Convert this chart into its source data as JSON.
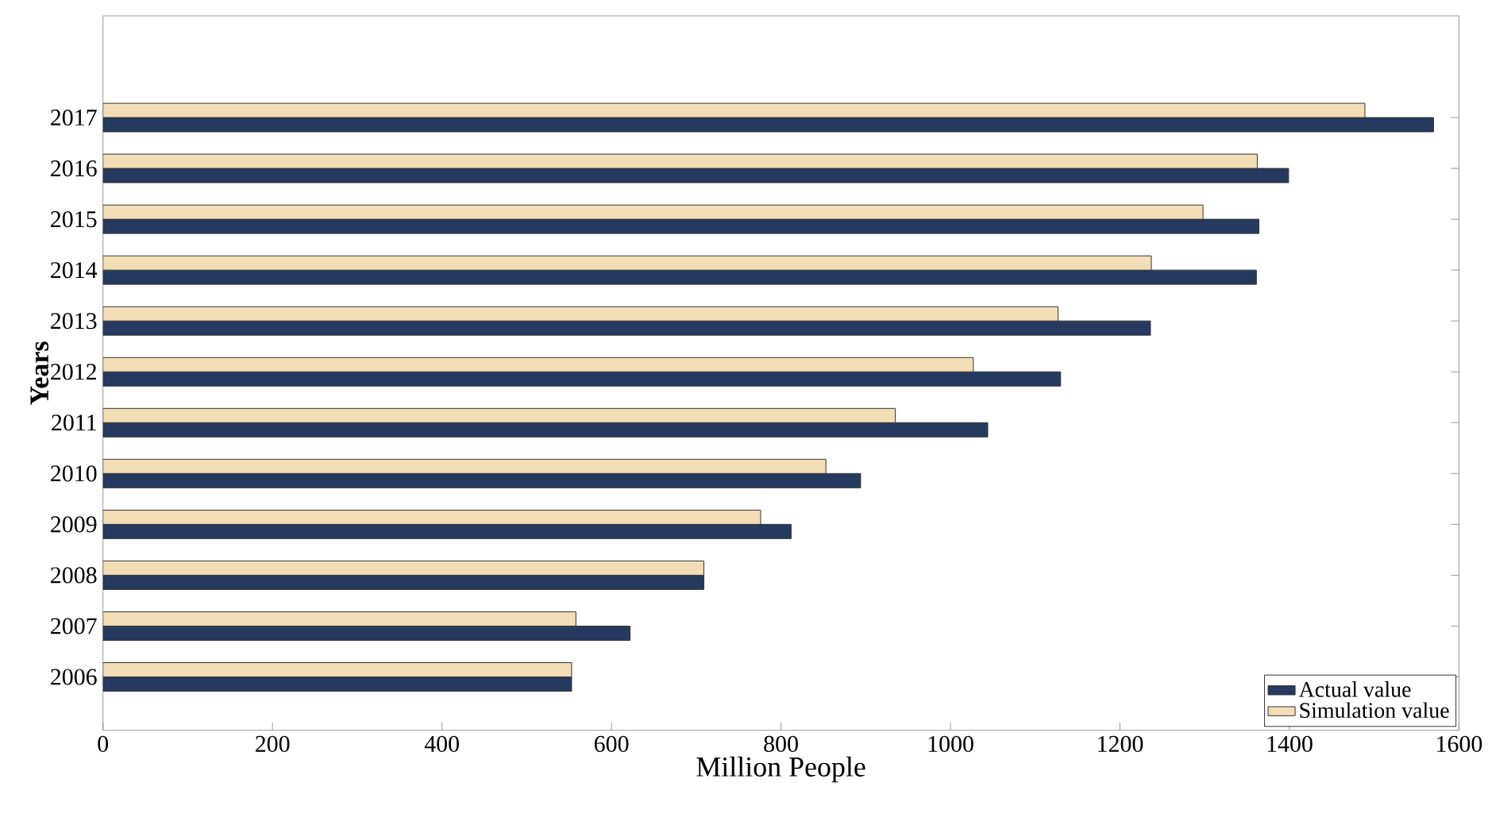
{
  "chart_data": {
    "type": "bar",
    "orientation": "horizontal",
    "xlabel": "Million People",
    "ylabel": "Years",
    "categories": [
      "2017",
      "2016",
      "2015",
      "2014",
      "2013",
      "2012",
      "2011",
      "2010",
      "2009",
      "2008",
      "2007",
      "2006"
    ],
    "series": [
      {
        "name": "Actual value",
        "color": "#253a5e",
        "values": [
          1570,
          1399,
          1364,
          1361,
          1236,
          1130,
          1044,
          894,
          812,
          709,
          622,
          553
        ]
      },
      {
        "name": "Simulation value",
        "color": "#f3ddb6",
        "values": [
          1489,
          1362,
          1298,
          1237,
          1127,
          1027,
          935,
          853,
          776,
          709,
          558,
          553
        ]
      }
    ],
    "xlim": [
      0,
      1600
    ],
    "xticks": [
      0,
      200,
      400,
      600,
      800,
      1000,
      1200,
      1400,
      1600
    ],
    "grid": false,
    "legend": "bottom right"
  }
}
